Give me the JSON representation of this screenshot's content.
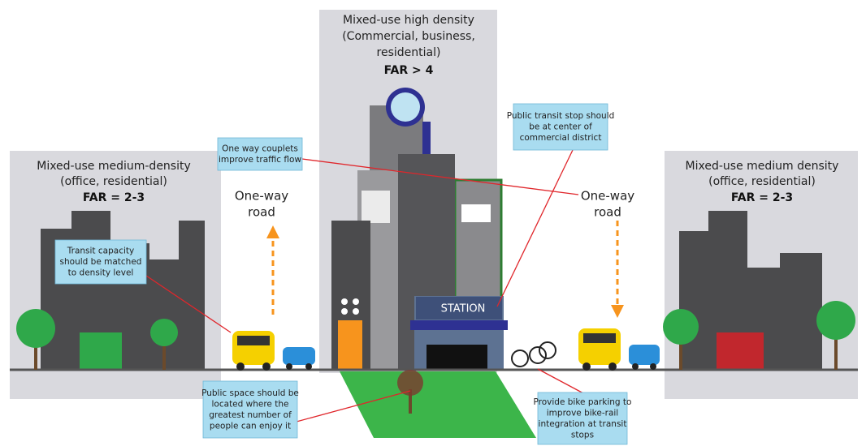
{
  "zones": [
    {
      "lines": [
        "Mixed-use medium-density",
        "(office, residential)"
      ],
      "far": "FAR = 2-3"
    },
    {
      "lines": [
        "Mixed-use high density",
        "(Commercial, business,",
        "residential)"
      ],
      "far": "FAR > 4"
    },
    {
      "lines": [
        "Mixed-use medium density",
        "(office, residential)"
      ],
      "far": "FAR = 2-3"
    }
  ],
  "roads": [
    {
      "lines": [
        "One-way",
        "road"
      ]
    },
    {
      "lines": [
        "One-way",
        "road"
      ]
    }
  ],
  "station": "STATION",
  "callouts": [
    {
      "lines": [
        "One way couplets",
        "improve traffic flow"
      ]
    },
    {
      "lines": [
        "Transit capacity",
        "should be matched",
        "to density level"
      ]
    },
    {
      "lines": [
        "Public transit stop should",
        "be at center of",
        "commercial district"
      ]
    },
    {
      "lines": [
        "Public space should be",
        "located where the",
        "greatest number of",
        "people can enjoy it"
      ]
    },
    {
      "lines": [
        "Provide bike parking to",
        "improve bike-rail",
        "integration at transit",
        "stops"
      ]
    }
  ]
}
